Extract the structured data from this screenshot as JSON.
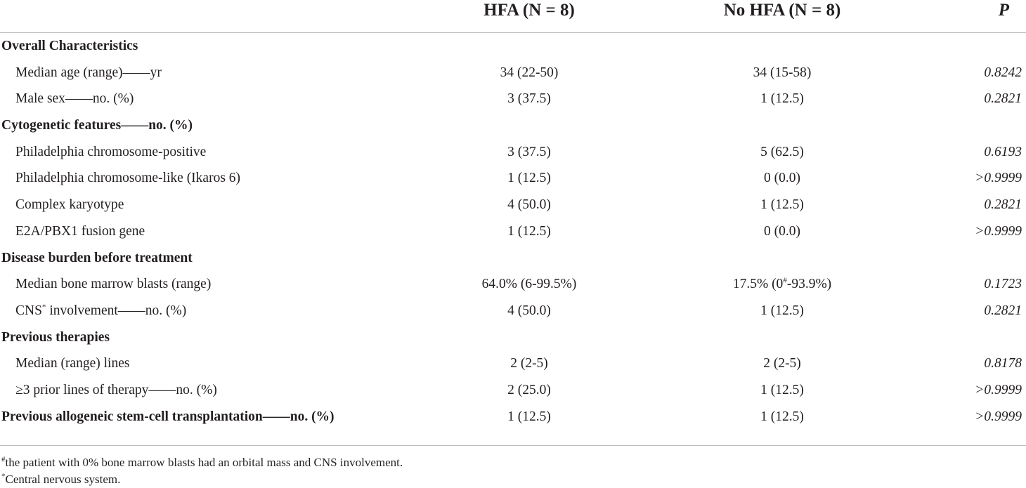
{
  "header": {
    "col_hfa": "HFA (N = 8)",
    "col_nohfa": "No HFA (N = 8)",
    "col_p": "P"
  },
  "rows": [
    {
      "label": "Overall Characteristics",
      "hfa": "",
      "nohfa": "",
      "p": ""
    },
    {
      "label": "Median age (range)——yr",
      "hfa": "34 (22-50)",
      "nohfa": "34 (15-58)",
      "p": "0.8242"
    },
    {
      "label": "Male sex——no. (%)",
      "hfa": "3 (37.5)",
      "nohfa": "1 (12.5)",
      "p": "0.2821"
    },
    {
      "label": "Cytogenetic features——no. (%)",
      "hfa": "",
      "nohfa": "",
      "p": ""
    },
    {
      "label": "Philadelphia chromosome-positive",
      "hfa": "3 (37.5)",
      "nohfa": "5 (62.5)",
      "p": "0.6193"
    },
    {
      "label": "Philadelphia chromosome-like (Ikaros 6)",
      "hfa": "1 (12.5)",
      "nohfa": "0 (0.0)",
      "p": ">0.9999"
    },
    {
      "label": "Complex karyotype",
      "hfa": "4 (50.0)",
      "nohfa": "1 (12.5)",
      "p": "0.2821"
    },
    {
      "label": "E2A/PBX1 fusion gene",
      "hfa": "1 (12.5)",
      "nohfa": "0 (0.0)",
      "p": ">0.9999"
    },
    {
      "label": "Disease burden before treatment",
      "hfa": "",
      "nohfa": "",
      "p": ""
    },
    {
      "label": "Median bone marrow blasts (range)",
      "hfa": "64.0% (6-99.5%)",
      "nohfa_pre": "17.5% (0",
      "nohfa_sup": "#",
      "nohfa_post": "-93.9%)",
      "p": "0.1723"
    },
    {
      "label_pre": "CNS",
      "label_sup": "*",
      "label_post": " involvement——no. (%)",
      "hfa": "4 (50.0)",
      "nohfa": "1 (12.5)",
      "p": "0.2821"
    },
    {
      "label": "Previous therapies",
      "hfa": "",
      "nohfa": "",
      "p": ""
    },
    {
      "label": "Median (range) lines",
      "hfa": "2 (2-5)",
      "nohfa": "2 (2-5)",
      "p": "0.8178"
    },
    {
      "label": "≥3 prior lines of therapy——no. (%)",
      "hfa": "2 (25.0)",
      "nohfa": "1 (12.5)",
      "p": ">0.9999"
    },
    {
      "label": "Previous allogeneic stem-cell transplantation——no. (%)",
      "hfa": "1 (12.5)",
      "nohfa": "1 (12.5)",
      "p": ">0.9999"
    }
  ],
  "footnotes": {
    "fn1_mark": "#",
    "fn1_text": "the patient with 0% bone marrow blasts had an orbital mass and CNS involvement.",
    "fn2_mark": "*",
    "fn2_text": "Central nervous system."
  }
}
